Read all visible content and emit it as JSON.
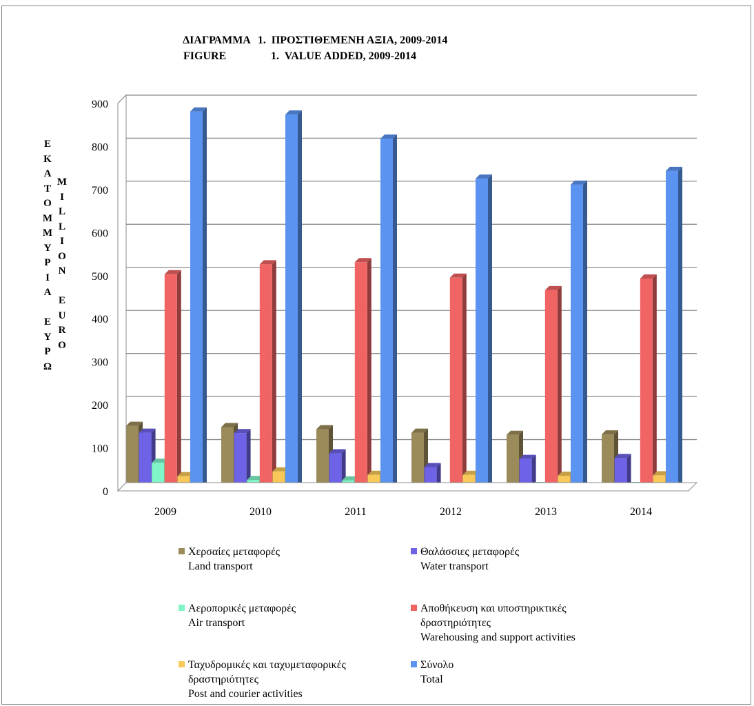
{
  "title": {
    "line1_label": "ΔΙΑΓΡΑΜΜΑ",
    "line1_text": "1.  ΠΡΟΣΤΙΘΕΜΕΝΗ ΑΞΙΑ, 2009-2014",
    "line2_label": "FIGURE",
    "line2_text": "1.  VALUE ADDED, 2009-2014"
  },
  "y_axis_label": {
    "greek": [
      "Ε",
      "Κ",
      "Α",
      "Τ",
      "Ο",
      "Μ",
      "Μ",
      "Υ",
      "Ρ",
      "Ι",
      "Α",
      "",
      "Ε",
      "Υ",
      "Ρ",
      "Ω"
    ],
    "english": [
      "M",
      "I",
      "L",
      "L",
      "I",
      "O",
      "N",
      "",
      "E",
      "U",
      "R",
      "O"
    ]
  },
  "chart_data": {
    "type": "bar",
    "style": "3d-clustered-column",
    "categories": [
      "2009",
      "2010",
      "2011",
      "2012",
      "2013",
      "2014"
    ],
    "ylim": [
      0,
      900
    ],
    "yticks": [
      0,
      100,
      200,
      300,
      400,
      500,
      600,
      700,
      800,
      900
    ],
    "ytick_labels": [
      "0",
      "100",
      "200",
      "300",
      "400",
      "500",
      "600",
      "700",
      "800",
      "900"
    ],
    "grid": true,
    "legend_placement": "bottom",
    "series": [
      {
        "name_gr": "Χερσαίες μεταφορές",
        "name_en": "Land transport",
        "color": "#9C8B5A",
        "values": [
          148,
          145,
          140,
          132,
          127,
          128
        ]
      },
      {
        "name_gr": "Θαλάσσιες μεταφορές",
        "name_en": "Water transport",
        "color": "#6E63E6",
        "values": [
          132,
          131,
          84,
          52,
          71,
          73
        ]
      },
      {
        "name_gr": "Αεροπορικές μεταφορές",
        "name_en": "Air transport",
        "color": "#7FF5C8",
        "values": [
          62,
          22,
          21,
          5,
          8,
          8
        ]
      },
      {
        "name_gr": "Αποθήκευση και υποστηρικτικές δραστηριότητες",
        "name_en": "Warehousing and support activities",
        "color": "#F06464",
        "values": [
          500,
          523,
          528,
          492,
          463,
          490
        ]
      },
      {
        "name_gr": "Ταχυδρομικές και ταχυμεταφορικές δραστηριότητες",
        "name_en": "Post and courier activities",
        "color": "#F8C858",
        "values": [
          31,
          42,
          34,
          34,
          32,
          33
        ]
      },
      {
        "name_gr": "Σύνολο",
        "name_en": "Total",
        "color": "#5A94F0",
        "values": [
          878,
          871,
          815,
          722,
          708,
          740
        ]
      }
    ]
  },
  "legend": [
    {
      "lines": [
        "Χερσαίες μεταφορές",
        "Land transport"
      ]
    },
    {
      "lines": [
        "Θαλάσσιες μεταφορές",
        "Water transport"
      ]
    },
    {
      "lines": [
        "Αεροπορικές μεταφορές",
        "Air transport"
      ]
    },
    {
      "lines": [
        "Αποθήκευση και υποστηρικτικές",
        "δραστηριότητες",
        "Warehousing and support activities"
      ]
    },
    {
      "lines": [
        "Ταχυδρομικές και ταχυμεταφορικές",
        "δραστηριότητες",
        "Post and courier activities"
      ]
    },
    {
      "lines": [
        "Σύνολο",
        "Total"
      ]
    }
  ]
}
